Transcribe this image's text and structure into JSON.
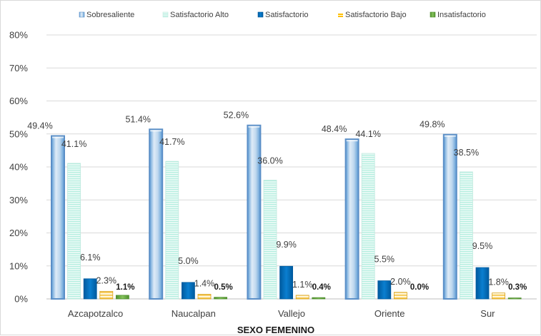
{
  "chart_data": {
    "type": "bar",
    "categories": [
      "Azcapotzalco",
      "Naucalpan",
      "Vallejo",
      "Oriente",
      "Sur"
    ],
    "series": [
      {
        "name": "Sobresaliente",
        "values": [
          49.4,
          51.4,
          52.6,
          48.4,
          49.8
        ],
        "labels": [
          "49.4%",
          "51.4%",
          "52.6%",
          "48.4%",
          "49.8%"
        ],
        "color": "#9dc3e6"
      },
      {
        "name": "Satisfactorio Alto",
        "values": [
          41.1,
          41.7,
          36.0,
          44.1,
          38.5
        ],
        "labels": [
          "41.1%",
          "41.7%",
          "36.0%",
          "44.1%",
          "38.5%"
        ],
        "color": "#c9f5ec"
      },
      {
        "name": "Satisfactorio",
        "values": [
          6.1,
          5.0,
          9.9,
          5.5,
          9.5
        ],
        "labels": [
          "6.1%",
          "5.0%",
          "9.9%",
          "5.5%",
          "9.5%"
        ],
        "color": "#0070c0"
      },
      {
        "name": "Satisfactorio Bajo",
        "values": [
          2.3,
          1.4,
          1.1,
          2.0,
          1.8
        ],
        "labels": [
          "2.3%",
          "1.4%",
          "1.1%",
          "2.0%",
          "1.8%"
        ],
        "color": "#ffc000"
      },
      {
        "name": "Insatisfactorio",
        "values": [
          1.1,
          0.5,
          0.4,
          0.0,
          0.3
        ],
        "labels": [
          "1.1%",
          "0.5%",
          "0.4%",
          "0.0%",
          "0.3%"
        ],
        "color": "#70ad47"
      }
    ],
    "xlabel": "SEXO FEMENINO",
    "ylabel": "",
    "ylim": [
      0,
      80
    ],
    "yticks": [
      "0%",
      "10%",
      "20%",
      "30%",
      "40%",
      "50%",
      "60%",
      "70%",
      "80%"
    ],
    "grid": true,
    "legend_position": "top"
  }
}
